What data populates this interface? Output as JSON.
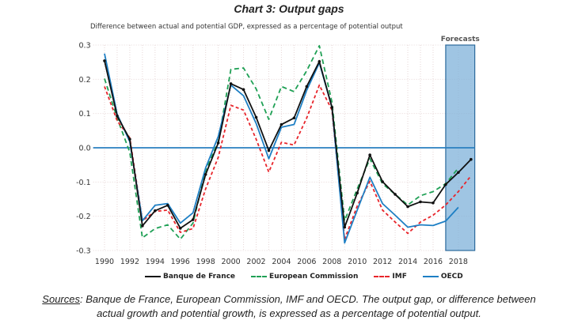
{
  "chart_data": {
    "type": "line",
    "title": "Chart 3: Output gaps",
    "subtitle": "Difference between actual and potential GDP, expressed as a percentage of potential output",
    "xlabel": "",
    "ylabel": "",
    "x": [
      1990,
      1991,
      1992,
      1993,
      1994,
      1995,
      1996,
      1997,
      1998,
      1999,
      2000,
      2001,
      2002,
      2003,
      2004,
      2005,
      2006,
      2007,
      2008,
      2009,
      2010,
      2011,
      2012,
      2013,
      2014,
      2015,
      2016,
      2017,
      2018,
      2019
    ],
    "xticks": [
      "1990",
      "1992",
      "1994",
      "1996",
      "1998",
      "2000",
      "2002",
      "2004",
      "2006",
      "2008",
      "2010",
      "2012",
      "2014",
      "2016",
      "2018"
    ],
    "yticks": [
      "0.3",
      "0.2",
      "0.1",
      "0.0",
      "-0.1",
      "-0.2",
      "-0.3"
    ],
    "ylim": [
      -0.3,
      0.3
    ],
    "xlim": [
      1989.1,
      2019.3
    ],
    "grid": true,
    "legend_position": "bottom",
    "forecast_band": {
      "label": "Forecasts",
      "from": 2017,
      "to": 2019.3,
      "color": "#7fb2da"
    },
    "zero_line_color": "#2a7fc0",
    "series": [
      {
        "name": "Banque de France",
        "color": "#111111",
        "style": "solid-markers",
        "values": [
          0.254,
          0.093,
          0.025,
          -0.228,
          -0.184,
          -0.168,
          -0.235,
          -0.21,
          -0.078,
          0.014,
          0.187,
          0.17,
          0.089,
          -0.008,
          0.068,
          0.087,
          0.179,
          0.252,
          0.118,
          -0.232,
          -0.132,
          -0.021,
          -0.099,
          -0.136,
          -0.172,
          -0.158,
          -0.161,
          -0.107,
          -0.072,
          -0.034
        ]
      },
      {
        "name": "European Commission",
        "color": "#1fa055",
        "style": "dashed",
        "values": [
          0.202,
          0.087,
          -0.013,
          -0.263,
          -0.236,
          -0.225,
          -0.267,
          -0.22,
          -0.067,
          0.018,
          0.229,
          0.233,
          0.172,
          0.083,
          0.179,
          0.164,
          0.225,
          0.298,
          0.133,
          -0.213,
          -0.12,
          -0.032,
          -0.105,
          -0.136,
          -0.167,
          -0.14,
          -0.128,
          -0.105,
          -0.059,
          null
        ]
      },
      {
        "name": "IMF",
        "color": "#e8252b",
        "style": "dashed-short",
        "values": [
          0.179,
          0.079,
          0.029,
          -0.213,
          -0.186,
          -0.182,
          -0.247,
          -0.236,
          -0.12,
          -0.028,
          0.124,
          0.11,
          0.025,
          -0.071,
          0.016,
          0.008,
          0.087,
          0.183,
          0.11,
          -0.267,
          -0.17,
          -0.098,
          -0.182,
          -0.217,
          -0.25,
          -0.217,
          -0.197,
          -0.167,
          -0.128,
          -0.082
        ]
      },
      {
        "name": "OECD",
        "color": "#1e7fc4",
        "style": "solid",
        "values": [
          0.275,
          0.098,
          0.018,
          -0.213,
          -0.168,
          -0.163,
          -0.22,
          -0.19,
          -0.059,
          0.033,
          0.183,
          0.152,
          0.071,
          -0.032,
          0.06,
          0.068,
          0.168,
          0.248,
          0.118,
          -0.278,
          -0.182,
          -0.086,
          -0.163,
          -0.197,
          -0.232,
          -0.225,
          -0.227,
          -0.214,
          -0.174,
          null
        ]
      }
    ]
  },
  "sources": {
    "label": "Sources",
    "line1": ": Banque de France, European Commission, IMF and OECD. The output gap, or difference between",
    "line2": "actual growth and potential growth, is expressed as a percentage of potential output."
  }
}
